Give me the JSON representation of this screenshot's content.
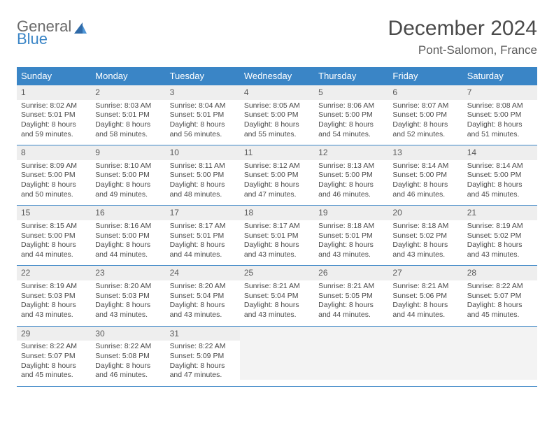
{
  "logo": {
    "part1": "General",
    "part2": "Blue"
  },
  "header": {
    "title": "December 2024",
    "location": "Pont-Salomon, France"
  },
  "colors": {
    "headerBlue": "#3a85c6",
    "dayBarGray": "#eeeeee",
    "textGray": "#4a4a4a",
    "rowBorder": "#3a85c6"
  },
  "weekdays": [
    "Sunday",
    "Monday",
    "Tuesday",
    "Wednesday",
    "Thursday",
    "Friday",
    "Saturday"
  ],
  "weeks": [
    [
      {
        "day": "1",
        "sunrise": "Sunrise: 8:02 AM",
        "sunset": "Sunset: 5:01 PM",
        "daylight": "Daylight: 8 hours and 59 minutes."
      },
      {
        "day": "2",
        "sunrise": "Sunrise: 8:03 AM",
        "sunset": "Sunset: 5:01 PM",
        "daylight": "Daylight: 8 hours and 58 minutes."
      },
      {
        "day": "3",
        "sunrise": "Sunrise: 8:04 AM",
        "sunset": "Sunset: 5:01 PM",
        "daylight": "Daylight: 8 hours and 56 minutes."
      },
      {
        "day": "4",
        "sunrise": "Sunrise: 8:05 AM",
        "sunset": "Sunset: 5:00 PM",
        "daylight": "Daylight: 8 hours and 55 minutes."
      },
      {
        "day": "5",
        "sunrise": "Sunrise: 8:06 AM",
        "sunset": "Sunset: 5:00 PM",
        "daylight": "Daylight: 8 hours and 54 minutes."
      },
      {
        "day": "6",
        "sunrise": "Sunrise: 8:07 AM",
        "sunset": "Sunset: 5:00 PM",
        "daylight": "Daylight: 8 hours and 52 minutes."
      },
      {
        "day": "7",
        "sunrise": "Sunrise: 8:08 AM",
        "sunset": "Sunset: 5:00 PM",
        "daylight": "Daylight: 8 hours and 51 minutes."
      }
    ],
    [
      {
        "day": "8",
        "sunrise": "Sunrise: 8:09 AM",
        "sunset": "Sunset: 5:00 PM",
        "daylight": "Daylight: 8 hours and 50 minutes."
      },
      {
        "day": "9",
        "sunrise": "Sunrise: 8:10 AM",
        "sunset": "Sunset: 5:00 PM",
        "daylight": "Daylight: 8 hours and 49 minutes."
      },
      {
        "day": "10",
        "sunrise": "Sunrise: 8:11 AM",
        "sunset": "Sunset: 5:00 PM",
        "daylight": "Daylight: 8 hours and 48 minutes."
      },
      {
        "day": "11",
        "sunrise": "Sunrise: 8:12 AM",
        "sunset": "Sunset: 5:00 PM",
        "daylight": "Daylight: 8 hours and 47 minutes."
      },
      {
        "day": "12",
        "sunrise": "Sunrise: 8:13 AM",
        "sunset": "Sunset: 5:00 PM",
        "daylight": "Daylight: 8 hours and 46 minutes."
      },
      {
        "day": "13",
        "sunrise": "Sunrise: 8:14 AM",
        "sunset": "Sunset: 5:00 PM",
        "daylight": "Daylight: 8 hours and 46 minutes."
      },
      {
        "day": "14",
        "sunrise": "Sunrise: 8:14 AM",
        "sunset": "Sunset: 5:00 PM",
        "daylight": "Daylight: 8 hours and 45 minutes."
      }
    ],
    [
      {
        "day": "15",
        "sunrise": "Sunrise: 8:15 AM",
        "sunset": "Sunset: 5:00 PM",
        "daylight": "Daylight: 8 hours and 44 minutes."
      },
      {
        "day": "16",
        "sunrise": "Sunrise: 8:16 AM",
        "sunset": "Sunset: 5:00 PM",
        "daylight": "Daylight: 8 hours and 44 minutes."
      },
      {
        "day": "17",
        "sunrise": "Sunrise: 8:17 AM",
        "sunset": "Sunset: 5:01 PM",
        "daylight": "Daylight: 8 hours and 44 minutes."
      },
      {
        "day": "18",
        "sunrise": "Sunrise: 8:17 AM",
        "sunset": "Sunset: 5:01 PM",
        "daylight": "Daylight: 8 hours and 43 minutes."
      },
      {
        "day": "19",
        "sunrise": "Sunrise: 8:18 AM",
        "sunset": "Sunset: 5:01 PM",
        "daylight": "Daylight: 8 hours and 43 minutes."
      },
      {
        "day": "20",
        "sunrise": "Sunrise: 8:18 AM",
        "sunset": "Sunset: 5:02 PM",
        "daylight": "Daylight: 8 hours and 43 minutes."
      },
      {
        "day": "21",
        "sunrise": "Sunrise: 8:19 AM",
        "sunset": "Sunset: 5:02 PM",
        "daylight": "Daylight: 8 hours and 43 minutes."
      }
    ],
    [
      {
        "day": "22",
        "sunrise": "Sunrise: 8:19 AM",
        "sunset": "Sunset: 5:03 PM",
        "daylight": "Daylight: 8 hours and 43 minutes."
      },
      {
        "day": "23",
        "sunrise": "Sunrise: 8:20 AM",
        "sunset": "Sunset: 5:03 PM",
        "daylight": "Daylight: 8 hours and 43 minutes."
      },
      {
        "day": "24",
        "sunrise": "Sunrise: 8:20 AM",
        "sunset": "Sunset: 5:04 PM",
        "daylight": "Daylight: 8 hours and 43 minutes."
      },
      {
        "day": "25",
        "sunrise": "Sunrise: 8:21 AM",
        "sunset": "Sunset: 5:04 PM",
        "daylight": "Daylight: 8 hours and 43 minutes."
      },
      {
        "day": "26",
        "sunrise": "Sunrise: 8:21 AM",
        "sunset": "Sunset: 5:05 PM",
        "daylight": "Daylight: 8 hours and 44 minutes."
      },
      {
        "day": "27",
        "sunrise": "Sunrise: 8:21 AM",
        "sunset": "Sunset: 5:06 PM",
        "daylight": "Daylight: 8 hours and 44 minutes."
      },
      {
        "day": "28",
        "sunrise": "Sunrise: 8:22 AM",
        "sunset": "Sunset: 5:07 PM",
        "daylight": "Daylight: 8 hours and 45 minutes."
      }
    ],
    [
      {
        "day": "29",
        "sunrise": "Sunrise: 8:22 AM",
        "sunset": "Sunset: 5:07 PM",
        "daylight": "Daylight: 8 hours and 45 minutes."
      },
      {
        "day": "30",
        "sunrise": "Sunrise: 8:22 AM",
        "sunset": "Sunset: 5:08 PM",
        "daylight": "Daylight: 8 hours and 46 minutes."
      },
      {
        "day": "31",
        "sunrise": "Sunrise: 8:22 AM",
        "sunset": "Sunset: 5:09 PM",
        "daylight": "Daylight: 8 hours and 47 minutes."
      },
      {
        "empty": true
      },
      {
        "empty": true
      },
      {
        "empty": true
      },
      {
        "empty": true
      }
    ]
  ]
}
